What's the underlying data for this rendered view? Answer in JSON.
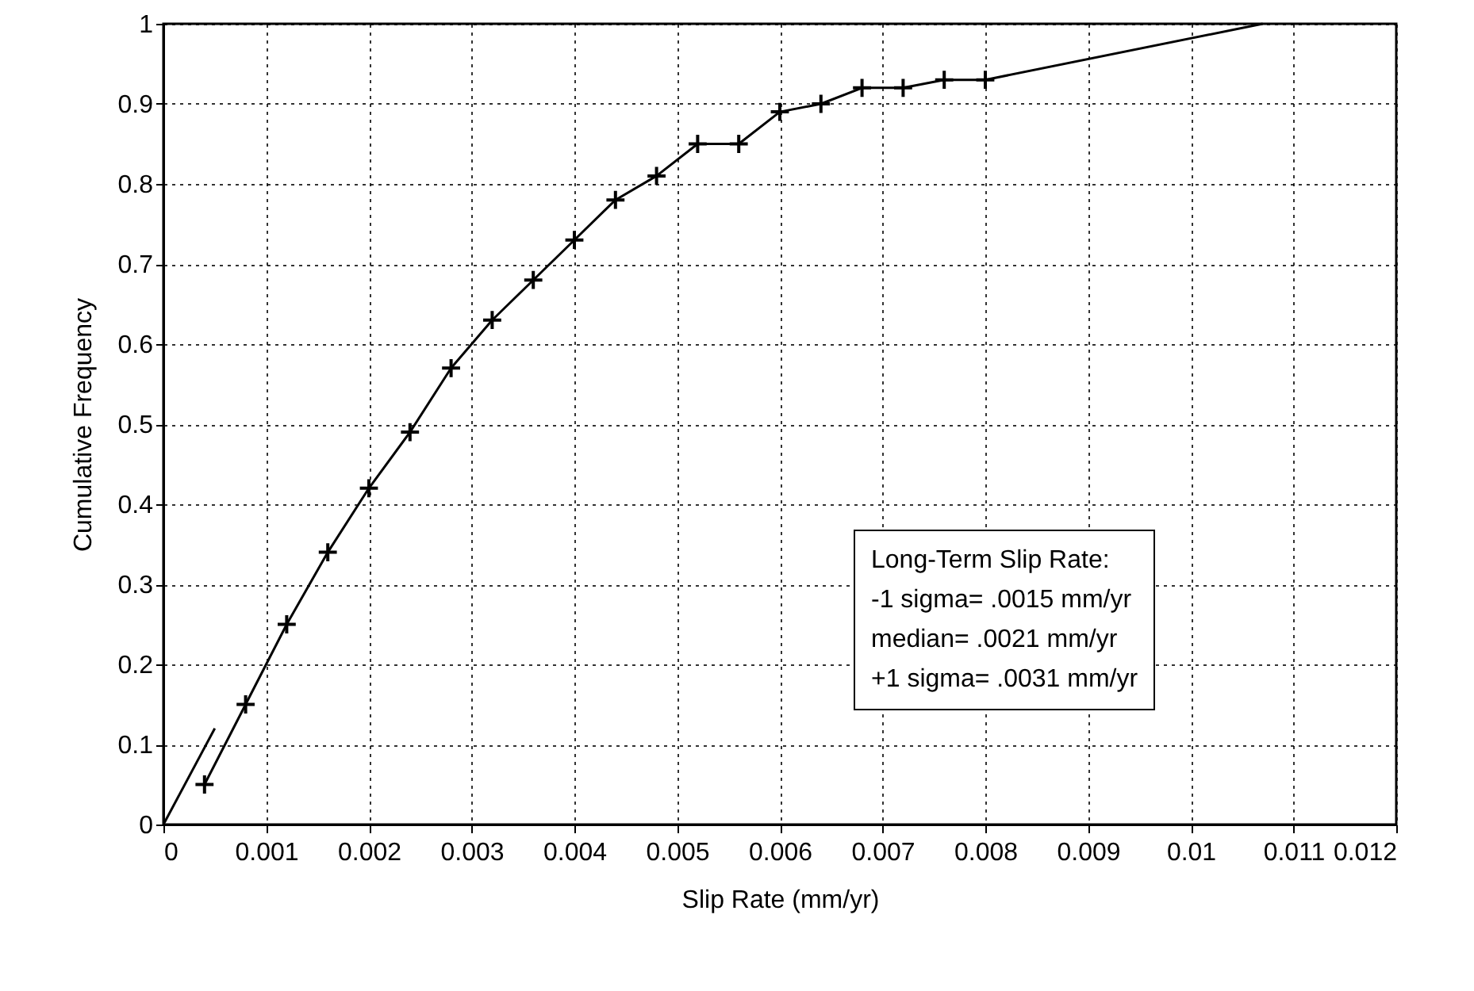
{
  "chart_data": {
    "type": "line",
    "xlabel": "Slip Rate (mm/yr)",
    "ylabel": "Cumulative Frequency",
    "xlim": [
      0,
      0.012
    ],
    "xticks": [
      0,
      0.001,
      0.002,
      0.003,
      0.004,
      0.005,
      0.006,
      0.007,
      0.008,
      0.009,
      0.01,
      0.011,
      0.012
    ],
    "ylim": [
      0,
      1
    ],
    "yticks": [
      0,
      0.1,
      0.2,
      0.3,
      0.4,
      0.5,
      0.6,
      0.7,
      0.8,
      0.9,
      1
    ],
    "grid": true,
    "annotations": [
      "Long-Term Slip Rate:",
      "-1 sigma= .0015 mm/yr",
      "median= .0021 mm/yr",
      "+1 sigma= .0031 mm/yr"
    ],
    "series": [
      {
        "color": "#000000",
        "marker": "cross",
        "x": [
          0.0004,
          0.0008,
          0.0012,
          0.0016,
          0.002,
          0.0024,
          0.0028,
          0.0032,
          0.0036,
          0.004,
          0.0044,
          0.0048,
          0.0052,
          0.0056,
          0.006,
          0.0064,
          0.0068,
          0.0072,
          0.0076,
          0.008
        ],
        "values": [
          0.05,
          0.15,
          0.25,
          0.34,
          0.42,
          0.49,
          0.57,
          0.63,
          0.68,
          0.73,
          0.78,
          0.81,
          0.85,
          0.85,
          0.89,
          0.9,
          0.92,
          0.92,
          0.93,
          0.93
        ]
      },
      {
        "color": "#000000",
        "marker": "none",
        "x": [
          0.008,
          0.0107
        ],
        "values": [
          0.93,
          1
        ]
      },
      {
        "color": "#000000",
        "marker": "none",
        "x": [
          0,
          0.0005
        ],
        "values": [
          0,
          0.12
        ]
      }
    ]
  }
}
